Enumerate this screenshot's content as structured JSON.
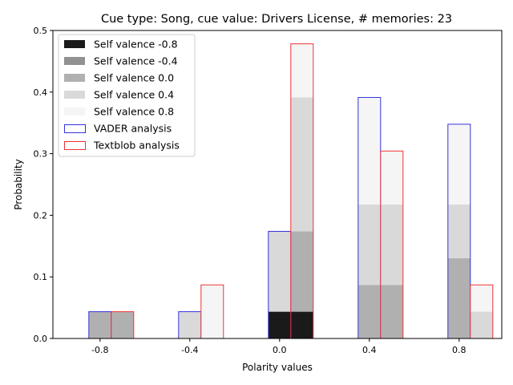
{
  "chart_data": {
    "type": "bar",
    "title": "Cue type: Song, cue value: Drivers License, # memories: 23",
    "xlabel": "Polarity values",
    "ylabel": "Probability",
    "categories": [
      "-0.8",
      "-0.4",
      "0.0",
      "0.4",
      "0.8"
    ],
    "x": [
      -0.8,
      -0.4,
      0.0,
      0.4,
      0.8
    ],
    "ylim": [
      0,
      0.5
    ],
    "yticks": [
      "0.0",
      "0.1",
      "0.2",
      "0.3",
      "0.4",
      "0.5"
    ],
    "legend_position": "top-left",
    "grid": false,
    "stacked": true,
    "series": [
      {
        "name": "VADER analysis",
        "edge_color": "#3333dd",
        "total": [
          0.0435,
          0.0435,
          0.1739,
          0.3913,
          0.3478
        ],
        "segments": [
          {
            "valence": "Self valence -0.8",
            "values": [
              0,
              0,
              0.0435,
              0,
              0
            ]
          },
          {
            "valence": "Self valence -0.4",
            "values": [
              0,
              0,
              0,
              0,
              0
            ]
          },
          {
            "valence": "Self valence 0.0",
            "values": [
              0.0435,
              0,
              0,
              0.087,
              0.1304
            ]
          },
          {
            "valence": "Self valence 0.4",
            "values": [
              0,
              0.0435,
              0.1304,
              0.1304,
              0.087
            ]
          },
          {
            "valence": "Self valence 0.8",
            "values": [
              0,
              0,
              0,
              0.1739,
              0.1304
            ]
          }
        ]
      },
      {
        "name": "Textblob analysis",
        "edge_color": "#ee3333",
        "total": [
          0.0435,
          0.087,
          0.4783,
          0.3043,
          0.087
        ],
        "segments": [
          {
            "valence": "Self valence -0.8",
            "values": [
              0,
              0,
              0.0435,
              0,
              0
            ]
          },
          {
            "valence": "Self valence -0.4",
            "values": [
              0,
              0,
              0,
              0,
              0
            ]
          },
          {
            "valence": "Self valence 0.0",
            "values": [
              0.0435,
              0,
              0.1304,
              0.087,
              0
            ]
          },
          {
            "valence": "Self valence 0.4",
            "values": [
              0,
              0,
              0.2174,
              0.1304,
              0.0435
            ]
          },
          {
            "valence": "Self valence 0.8",
            "values": [
              0,
              0.087,
              0.087,
              0.087,
              0.0435
            ]
          }
        ]
      }
    ],
    "legend": [
      {
        "label": "Self valence -0.8",
        "kind": "fill",
        "color": "#1a1a1a"
      },
      {
        "label": "Self valence -0.4",
        "kind": "fill",
        "color": "#919191"
      },
      {
        "label": "Self valence 0.0",
        "kind": "fill",
        "color": "#b0b0b0"
      },
      {
        "label": "Self valence 0.4",
        "kind": "fill",
        "color": "#d9d9d9"
      },
      {
        "label": "Self valence 0.8",
        "kind": "fill",
        "color": "#f5f5f5"
      },
      {
        "label": "VADER analysis",
        "kind": "edge",
        "color": "#3333dd"
      },
      {
        "label": "Textblob analysis",
        "kind": "edge",
        "color": "#ee3333"
      }
    ]
  }
}
